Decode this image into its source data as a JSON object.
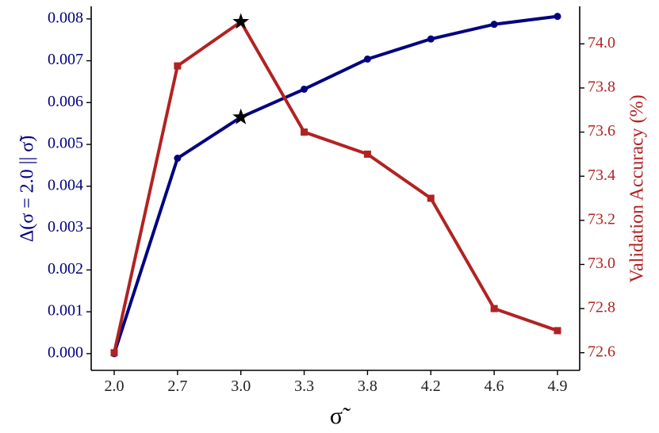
{
  "chart_data": {
    "type": "line",
    "x": [
      "2.0",
      "2.7",
      "3.0",
      "3.3",
      "3.8",
      "4.2",
      "4.6",
      "4.9"
    ],
    "xlabel": "σ̃",
    "left_axis": {
      "label": "Δ(σ = 2.0 || σ̃)",
      "ylim": [
        -0.0004,
        0.0083
      ],
      "ticks": [
        "0.000",
        "0.001",
        "0.002",
        "0.003",
        "0.004",
        "0.005",
        "0.006",
        "0.007",
        "0.008"
      ],
      "color": "#000080"
    },
    "right_axis": {
      "label": "Validation Accuracy (%)",
      "ylim": [
        72.52,
        74.17
      ],
      "ticks": [
        "72.6",
        "72.8",
        "73.0",
        "73.2",
        "73.4",
        "73.6",
        "73.8",
        "74.0"
      ],
      "color": "#b22222"
    },
    "series": [
      {
        "axis": "left",
        "marker": "circle",
        "color": "#000080",
        "values": [
          0.0,
          0.00467,
          0.00565,
          0.00632,
          0.00704,
          0.00752,
          0.00787,
          0.00806
        ],
        "highlight_index": 2
      },
      {
        "axis": "right",
        "marker": "square",
        "color": "#b22222",
        "values": [
          72.6,
          73.9,
          74.1,
          73.6,
          73.5,
          73.3,
          72.8,
          72.7
        ],
        "highlight_index": 2
      }
    ],
    "highlight_marker": "star",
    "grid": false,
    "legend": false
  }
}
